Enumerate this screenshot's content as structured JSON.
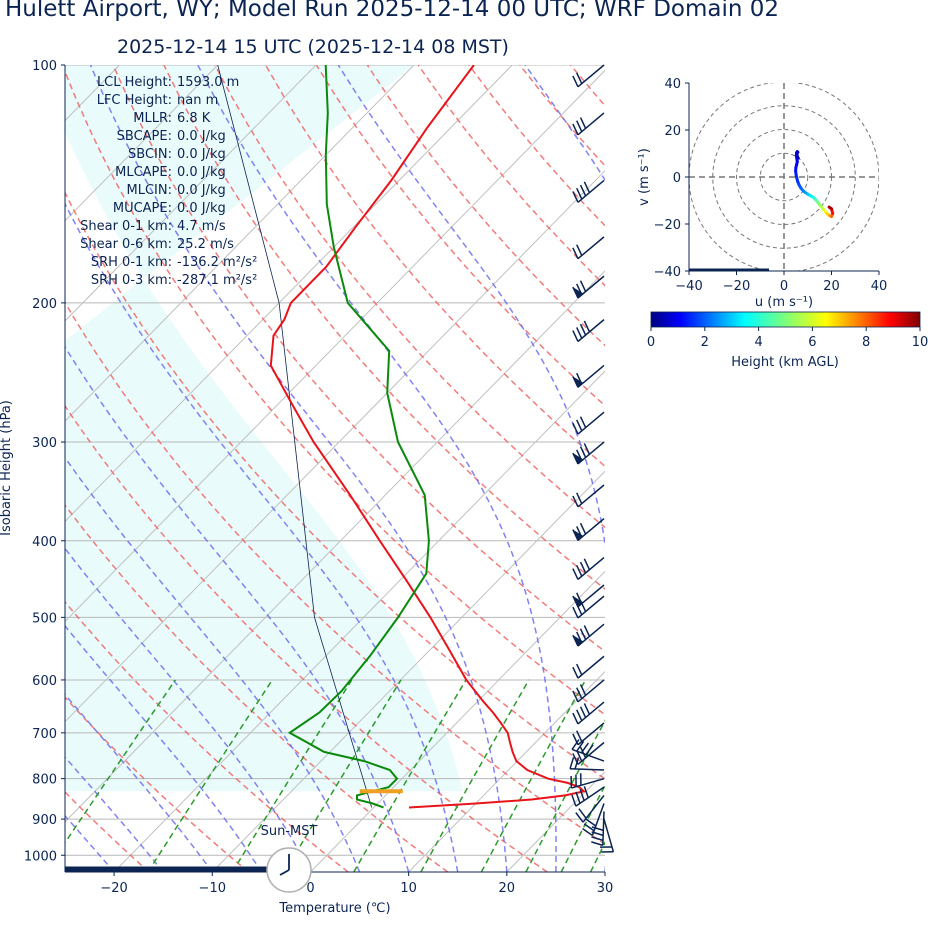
{
  "title": "Hulett Airport, WY; Model Run 2025-12-14 00 UTC; WRF Domain 02",
  "subtitle": "2025-12-14 15 UTC  (2025-12-14 08 MST)",
  "colors": {
    "text": "#0b2452",
    "temperature": "#e8141a",
    "dewpoint": "#0a8a0a",
    "dry_adiabat": "#f06464",
    "moist_adiabat": "#6c6cf0",
    "mixing_ratio": "#2a9a2a",
    "cape_shade": "#e9fbfb",
    "lcl_marker": "#f0a020"
  },
  "indices": [
    {
      "label": "LCL Height:",
      "value": "1593.0 m"
    },
    {
      "label": "LFC Height:",
      "value": "nan m"
    },
    {
      "label": "MLLR:",
      "value": "6.8 K"
    },
    {
      "label": "SBCAPE:",
      "value": "0.0 J/kg"
    },
    {
      "label": "SBCIN:",
      "value": "0.0 J/kg"
    },
    {
      "label": "MLCAPE:",
      "value": "0.0 J/kg"
    },
    {
      "label": "MLCIN:",
      "value": "0.0 J/kg"
    },
    {
      "label": "MUCAPE:",
      "value": "0.0 J/kg"
    },
    {
      "label": "Shear 0-1 km:",
      "value": "4.7 m/s"
    },
    {
      "label": "Shear 0-6 km:",
      "value": "25.2 m/s"
    },
    {
      "label": "SRH 0-1 km:",
      "value": "-136.2 m²/s²"
    },
    {
      "label": "SRH 0-3 km:",
      "value": "-287.1 m²/s²"
    }
  ],
  "sun_label": "Sun-MST",
  "clock_time": "08:00",
  "chart_data": [
    {
      "type": "line",
      "name": "skew-t",
      "xlabel": "Temperature (℃)",
      "ylabel": "Isobaric Height (hPa)",
      "xlim": [
        -25,
        30
      ],
      "ylim": [
        1050,
        100
      ],
      "y_scale": "log",
      "x_ticks": [
        "−20",
        "−10",
        "0",
        "10",
        "20",
        "30"
      ],
      "x_tick_values": [
        -20,
        -10,
        0,
        10,
        20,
        30
      ],
      "y_ticks": [
        "100",
        "200",
        "300",
        "400",
        "500",
        "600",
        "700",
        "800",
        "900",
        "1000"
      ],
      "y_tick_values": [
        100,
        200,
        300,
        400,
        500,
        600,
        700,
        800,
        900,
        1000
      ],
      "temperature": {
        "p": [
          870,
          860,
          850,
          840,
          830,
          820,
          810,
          800,
          780,
          760,
          740,
          720,
          700,
          680,
          660,
          640,
          600,
          550,
          500,
          450,
          400,
          350,
          300,
          270,
          240,
          220,
          210,
          200,
          180,
          160,
          140,
          120,
          100
        ],
        "t": [
          3.6,
          10,
          15.3,
          18.3,
          19.8,
          18.9,
          17.3,
          14.9,
          11.9,
          9.9,
          8.6,
          7.4,
          6.2,
          4.5,
          2.7,
          0.7,
          -3.3,
          -8.0,
          -13.2,
          -19.2,
          -26.0,
          -33.6,
          -42.6,
          -48.3,
          -54.6,
          -57.3,
          -57.8,
          -58.8,
          -58.8,
          -59.8,
          -60.8,
          -62.4,
          -63.9
        ]
      },
      "dewpoint": {
        "p": [
          870,
          860,
          850,
          840,
          820,
          800,
          780,
          760,
          740,
          700,
          660,
          620,
          560,
          500,
          440,
          400,
          350,
          300,
          260,
          230,
          200,
          170,
          150,
          130,
          115,
          100
        ],
        "td": [
          1.0,
          -0.5,
          -2.5,
          -2.9,
          -0.5,
          -0.5,
          -2.1,
          -5.6,
          -10.6,
          -16.0,
          -15.0,
          -14.9,
          -15.5,
          -16.5,
          -18.0,
          -21.0,
          -26.0,
          -34.0,
          -40.0,
          -44.0,
          -53.0,
          -60.0,
          -65.0,
          -70.0,
          -74.0,
          -79.0
        ]
      },
      "lcl_hpa": 830,
      "wind_barbs_hpa": [
        100,
        115,
        140,
        165,
        185,
        210,
        240,
        275,
        300,
        340,
        375,
        420,
        455,
        470,
        510,
        560,
        600,
        640,
        680,
        720,
        760,
        780,
        800,
        820,
        840,
        860,
        880,
        900
      ]
    },
    {
      "type": "scatter",
      "name": "hodograph",
      "xlabel": "u (m s⁻¹)",
      "ylabel": "v (m s⁻¹)",
      "xlim": [
        -40,
        40
      ],
      "ylim": [
        -40,
        40
      ],
      "x_ticks": [
        "−40",
        "−20",
        "0",
        "20",
        "40"
      ],
      "x_tick_values": [
        -40,
        -20,
        0,
        20,
        40
      ],
      "y_ticks": [
        "−40",
        "−20",
        "0",
        "20",
        "40"
      ],
      "y_tick_values": [
        -40,
        -20,
        0,
        20,
        40
      ],
      "rings": [
        10,
        20,
        30,
        40
      ],
      "u": [
        6.0,
        5.5,
        5.5,
        5.8,
        5.6,
        5.3,
        5.2,
        5.4,
        5.6,
        5.3,
        5.0,
        4.9,
        5.1,
        5.4,
        5.8,
        6.3,
        7.0,
        7.8,
        8.8,
        10.0,
        11.2,
        12.4,
        13.2,
        14.0,
        15.0,
        16.0,
        17.0,
        18.0,
        19.0,
        20.0,
        20.5,
        20.0,
        19.0
      ],
      "v": [
        8.0,
        9.0,
        10.0,
        10.5,
        10.8,
        10.3,
        9.2,
        7.8,
        6.5,
        5.2,
        4.0,
        2.5,
        1.0,
        -0.5,
        -2.0,
        -3.3,
        -4.5,
        -5.6,
        -6.5,
        -7.3,
        -8.0,
        -8.7,
        -9.5,
        -10.5,
        -11.8,
        -13.0,
        -14.3,
        -15.5,
        -16.3,
        -16.8,
        -15.5,
        -13.5,
        -12.8
      ],
      "height_km": [
        0.1,
        0.2,
        0.3,
        0.4,
        0.5,
        0.6,
        0.7,
        0.8,
        0.9,
        1.0,
        1.1,
        1.2,
        1.3,
        1.4,
        1.5,
        1.6,
        1.8,
        2.0,
        2.3,
        2.6,
        3.0,
        3.4,
        3.8,
        4.3,
        4.8,
        5.3,
        5.8,
        6.3,
        6.8,
        7.3,
        8.0,
        8.8,
        9.6
      ]
    }
  ],
  "colorbar": {
    "label": "Height (km AGL)",
    "ticks": [
      "0",
      "2",
      "4",
      "6",
      "8",
      "10"
    ],
    "tick_values": [
      0,
      2,
      4,
      6,
      8,
      10
    ],
    "range": [
      0,
      10
    ],
    "colormap": "jet"
  }
}
